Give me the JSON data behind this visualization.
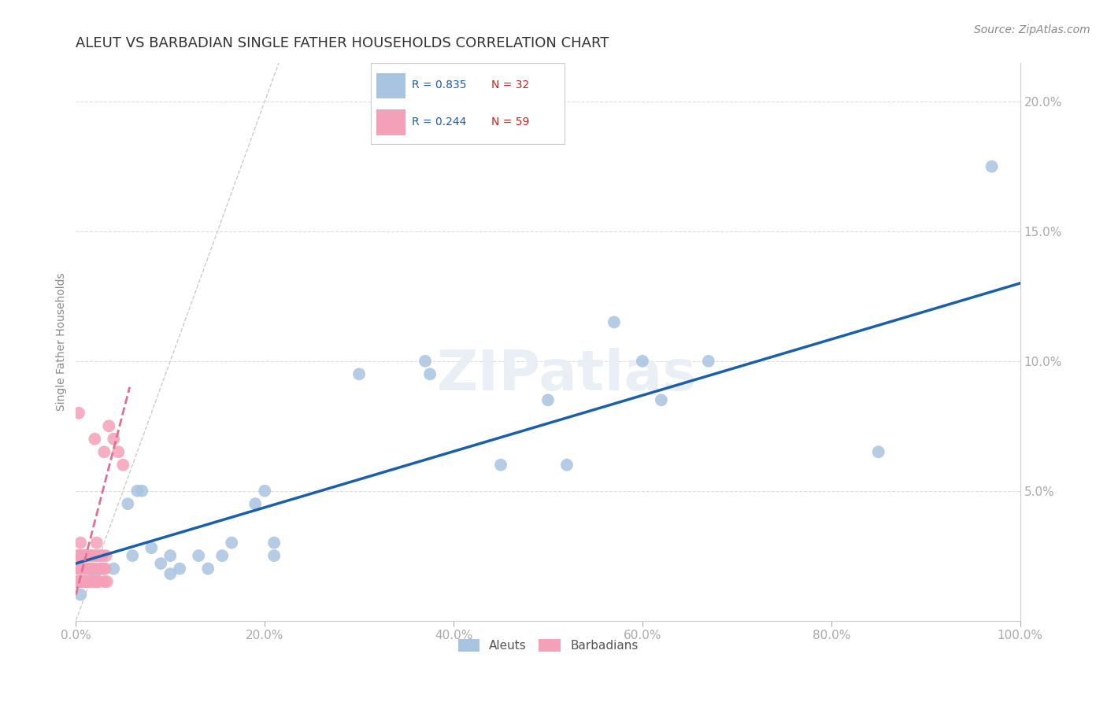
{
  "title": "ALEUT VS BARBADIAN SINGLE FATHER HOUSEHOLDS CORRELATION CHART",
  "source": "Source: ZipAtlas.com",
  "ylabel": "Single Father Households",
  "xlim": [
    0.0,
    1.0
  ],
  "ylim": [
    0.0,
    0.215
  ],
  "xticks": [
    0.0,
    0.2,
    0.4,
    0.6,
    0.8,
    1.0
  ],
  "yticks": [
    0.05,
    0.1,
    0.15,
    0.2
  ],
  "xtick_labels": [
    "0.0%",
    "20.0%",
    "40.0%",
    "60.0%",
    "80.0%",
    "100.0%"
  ],
  "ytick_labels": [
    "5.0%",
    "10.0%",
    "15.0%",
    "20.0%"
  ],
  "aleut_R": 0.835,
  "aleut_N": 32,
  "barbadian_R": 0.244,
  "barbadian_N": 59,
  "aleut_color": "#a8c4e0",
  "aleut_line_color": "#1a5fa8",
  "barbadian_color": "#f4a0b8",
  "barbadian_line_color": "#e07090",
  "aleut_x": [
    0.005,
    0.02,
    0.04,
    0.055,
    0.06,
    0.065,
    0.07,
    0.08,
    0.09,
    0.1,
    0.1,
    0.11,
    0.13,
    0.14,
    0.155,
    0.165,
    0.19,
    0.2,
    0.21,
    0.21,
    0.3,
    0.37,
    0.375,
    0.45,
    0.5,
    0.52,
    0.57,
    0.6,
    0.62,
    0.67,
    0.85,
    0.97
  ],
  "aleut_y": [
    0.01,
    0.018,
    0.02,
    0.045,
    0.025,
    0.05,
    0.05,
    0.028,
    0.022,
    0.018,
    0.025,
    0.02,
    0.025,
    0.02,
    0.025,
    0.03,
    0.045,
    0.05,
    0.025,
    0.03,
    0.095,
    0.1,
    0.095,
    0.06,
    0.085,
    0.06,
    0.115,
    0.1,
    0.085,
    0.1,
    0.065,
    0.175
  ],
  "barbadian_x": [
    0.001,
    0.001,
    0.002,
    0.002,
    0.003,
    0.003,
    0.003,
    0.004,
    0.004,
    0.005,
    0.005,
    0.005,
    0.005,
    0.006,
    0.006,
    0.007,
    0.007,
    0.007,
    0.008,
    0.008,
    0.009,
    0.009,
    0.01,
    0.01,
    0.01,
    0.011,
    0.011,
    0.012,
    0.012,
    0.013,
    0.013,
    0.014,
    0.015,
    0.015,
    0.016,
    0.017,
    0.018,
    0.019,
    0.02,
    0.021,
    0.022,
    0.022,
    0.023,
    0.024,
    0.025,
    0.026,
    0.027,
    0.028,
    0.029,
    0.03,
    0.031,
    0.032,
    0.033,
    0.035,
    0.04,
    0.045,
    0.05,
    0.02,
    0.03
  ],
  "barbadian_y": [
    0.015,
    0.02,
    0.015,
    0.025,
    0.025,
    0.02,
    0.08,
    0.015,
    0.025,
    0.02,
    0.015,
    0.025,
    0.03,
    0.02,
    0.025,
    0.015,
    0.02,
    0.025,
    0.015,
    0.02,
    0.025,
    0.015,
    0.015,
    0.02,
    0.025,
    0.02,
    0.025,
    0.015,
    0.02,
    0.025,
    0.015,
    0.02,
    0.025,
    0.015,
    0.02,
    0.02,
    0.025,
    0.015,
    0.02,
    0.025,
    0.015,
    0.03,
    0.025,
    0.015,
    0.02,
    0.025,
    0.02,
    0.025,
    0.02,
    0.015,
    0.02,
    0.025,
    0.015,
    0.075,
    0.07,
    0.065,
    0.06,
    0.07,
    0.065
  ],
  "background_color": "#ffffff",
  "grid_color": "#dddddd",
  "title_fontsize": 13,
  "axis_label_fontsize": 10,
  "tick_fontsize": 11,
  "watermark": "ZIPatlas",
  "aleut_line_x": [
    0.0,
    1.0
  ],
  "aleut_line_y": [
    0.022,
    0.13
  ],
  "barbadian_line_x": [
    0.0,
    0.057
  ],
  "barbadian_line_y": [
    0.01,
    0.09
  ]
}
